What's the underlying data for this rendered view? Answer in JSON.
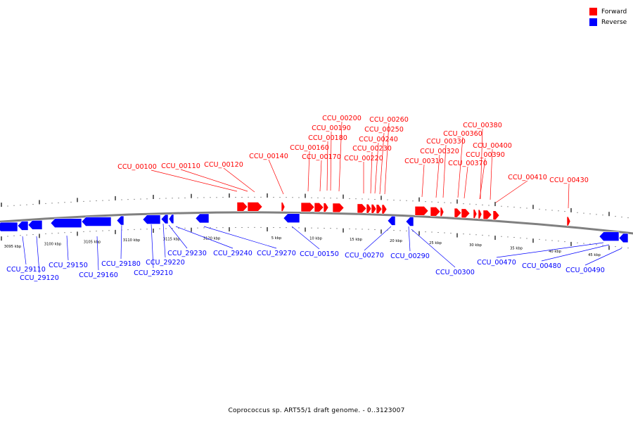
{
  "caption": "Coprococcus sp. ART55/1 draft genome. - 0..3123007",
  "legend": [
    {
      "label": "Forward",
      "color": "#ff0000"
    },
    {
      "label": "Reverse",
      "color": "#0000ff"
    }
  ],
  "colors": {
    "forward": "#ff0000",
    "reverse": "#0000ff",
    "backbone": "#808080"
  },
  "scale_labels": [
    "3095 kbp",
    "3100 kbp",
    "3105 kbp",
    "3110 kbp",
    "3115 kbp",
    "3120 kbp",
    "5 kbp",
    "10 kbp",
    "15 kbp",
    "20 kbp",
    "25 kbp",
    "30 kbp",
    "35 kbp",
    "40 kbp",
    "45 kbp"
  ],
  "forward_genes": [
    "CCU_00100",
    "CCU_00110",
    "CCU_00120",
    "CCU_00140",
    "CCU_00160",
    "CCU_00170",
    "CCU_00180",
    "CCU_00190",
    "CCU_00200",
    "CCU_00220",
    "CCU_00230",
    "CCU_00240",
    "CCU_00250",
    "CCU_00260",
    "CCU_00310",
    "CCU_00320",
    "CCU_00330",
    "CCU_00360",
    "CCU_00370",
    "CCU_00380",
    "CCU_00390",
    "CCU_00400",
    "CCU_00410",
    "CCU_00430"
  ],
  "reverse_genes": [
    "CCU_29110",
    "CCU_29120",
    "CCU_29150",
    "CCU_29160",
    "CCU_29180",
    "CCU_29210",
    "CCU_29220",
    "CCU_29230",
    "CCU_29240",
    "CCU_29270",
    "CCU_00150",
    "CCU_00270",
    "CCU_00290",
    "CCU_00300",
    "CCU_00470",
    "CCU_00480",
    "CCU_00490"
  ]
}
